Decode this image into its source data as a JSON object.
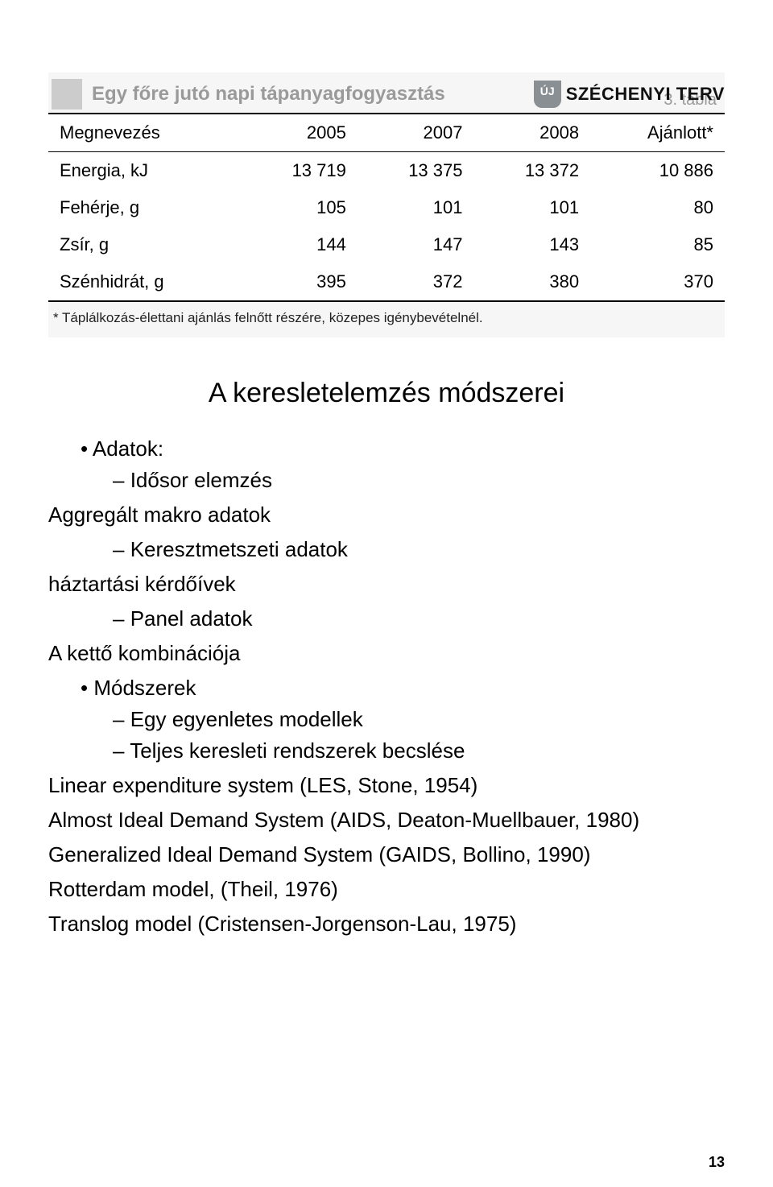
{
  "logo": {
    "badge": "ÚJ",
    "text": "SZÉCHENYI TERV"
  },
  "table": {
    "number": "3. tábla",
    "title": "Egy főre jutó napi tápanyagfogyasztás",
    "columns": [
      "Megnevezés",
      "2005",
      "2007",
      "2008",
      "Ajánlott*"
    ],
    "rows": [
      [
        "Energia, kJ",
        "13 719",
        "13 375",
        "13 372",
        "10 886"
      ],
      [
        "Fehérje, g",
        "105",
        "101",
        "101",
        "80"
      ],
      [
        "Zsír, g",
        "144",
        "147",
        "143",
        "85"
      ],
      [
        "Szénhidrát, g",
        "395",
        "372",
        "380",
        "370"
      ]
    ],
    "footnote": "* Táplálkozás-élettani ajánlás felnőtt részére, közepes igénybevételnél."
  },
  "section": {
    "title": "A keresletelemzés módszerei",
    "items": {
      "adatok_label": "Adatok:",
      "idosor": "Idősor elemzés",
      "aggregalt": "Aggregált makro adatok",
      "keresztmetszeti": "Keresztmetszeti adatok",
      "haztartasi": "háztartási kérdőívek",
      "panel": "Panel adatok",
      "ketto": "A kettő kombinációja",
      "modszerek_label": "Módszerek",
      "egyenletes": "Egy egyenletes modellek",
      "teljes": "Teljes keresleti rendszerek becslése",
      "les": "Linear expenditure system (LES, Stone, 1954)",
      "aids": "Almost Ideal Demand System (AIDS, Deaton-Muellbauer, 1980)",
      "gaids": "Generalized Ideal Demand System (GAIDS, Bollino, 1990)",
      "rotterdam": "Rotterdam model, (Theil, 1976)",
      "translog": "Translog model (Cristensen-Jorgenson-Lau, 1975)"
    }
  },
  "page_number": "13"
}
